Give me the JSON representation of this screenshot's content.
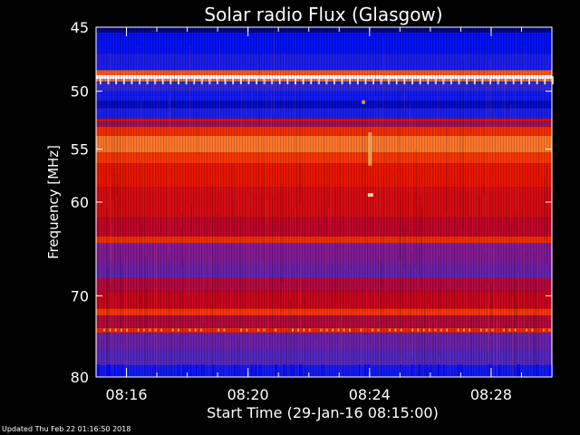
{
  "chart_data": {
    "type": "heatmap",
    "title": "Solar radio Flux (Glasgow)",
    "ylabel": "Frequency [MHz]",
    "xlabel": "Start Time (29-Jan-16 08:15:00)",
    "x_ticks": [
      {
        "label": "08:16",
        "minutes": 1
      },
      {
        "label": "08:20",
        "minutes": 5
      },
      {
        "label": "08:24",
        "minutes": 9
      },
      {
        "label": "08:28",
        "minutes": 13
      }
    ],
    "y_ticks": [
      45,
      50,
      55,
      60,
      70,
      80
    ],
    "xlim_minutes": [
      0,
      15
    ],
    "ylim_mhz": [
      45,
      80
    ],
    "y_scale": "log",
    "colormap": [
      "#000080",
      "#0010ff",
      "#3a2ad0",
      "#7a1a9a",
      "#c00020",
      "#e81000",
      "#ff4000",
      "#ff9040",
      "#ffe0a0",
      "#ffffff"
    ],
    "bands": [
      {
        "from_mhz": 45.0,
        "to_mhz": 45.4,
        "level": 0.0
      },
      {
        "from_mhz": 45.4,
        "to_mhz": 47.0,
        "level": 0.1
      },
      {
        "from_mhz": 47.0,
        "to_mhz": 48.3,
        "level": 0.16
      },
      {
        "from_mhz": 48.3,
        "to_mhz": 48.7,
        "level": 0.7
      },
      {
        "from_mhz": 48.7,
        "to_mhz": 49.0,
        "level": 1.0
      },
      {
        "from_mhz": 49.0,
        "to_mhz": 49.2,
        "level": 0.75
      },
      {
        "from_mhz": 49.2,
        "to_mhz": 50.0,
        "level": 0.2
      },
      {
        "from_mhz": 50.0,
        "to_mhz": 50.8,
        "level": 0.14
      },
      {
        "from_mhz": 50.8,
        "to_mhz": 51.4,
        "level": 0.06
      },
      {
        "from_mhz": 51.4,
        "to_mhz": 52.3,
        "level": 0.16
      },
      {
        "from_mhz": 52.3,
        "to_mhz": 52.6,
        "level": 0.52
      },
      {
        "from_mhz": 52.6,
        "to_mhz": 53.0,
        "level": 0.38
      },
      {
        "from_mhz": 53.0,
        "to_mhz": 53.8,
        "level": 0.62
      },
      {
        "from_mhz": 53.8,
        "to_mhz": 55.3,
        "level": 0.74
      },
      {
        "from_mhz": 55.3,
        "to_mhz": 56.3,
        "level": 0.64
      },
      {
        "from_mhz": 56.3,
        "to_mhz": 58.5,
        "level": 0.56
      },
      {
        "from_mhz": 58.5,
        "to_mhz": 61.5,
        "level": 0.5
      },
      {
        "from_mhz": 61.5,
        "to_mhz": 63.5,
        "level": 0.44
      },
      {
        "from_mhz": 63.5,
        "to_mhz": 64.2,
        "level": 0.62
      },
      {
        "from_mhz": 64.2,
        "to_mhz": 66.5,
        "level": 0.34
      },
      {
        "from_mhz": 66.5,
        "to_mhz": 68.0,
        "level": 0.3
      },
      {
        "from_mhz": 68.0,
        "to_mhz": 69.5,
        "level": 0.42
      },
      {
        "from_mhz": 69.5,
        "to_mhz": 71.5,
        "level": 0.46
      },
      {
        "from_mhz": 71.5,
        "to_mhz": 72.3,
        "level": 0.64
      },
      {
        "from_mhz": 72.3,
        "to_mhz": 73.8,
        "level": 0.42
      },
      {
        "from_mhz": 73.8,
        "to_mhz": 74.4,
        "level": 0.6
      },
      {
        "from_mhz": 74.4,
        "to_mhz": 76.5,
        "level": 0.3
      },
      {
        "from_mhz": 76.5,
        "to_mhz": 78.5,
        "level": 0.26
      },
      {
        "from_mhz": 78.5,
        "to_mhz": 80.0,
        "level": 0.14
      }
    ]
  },
  "footer": {
    "updated": "Updated Thu Feb 22 01:16:50 2018"
  }
}
